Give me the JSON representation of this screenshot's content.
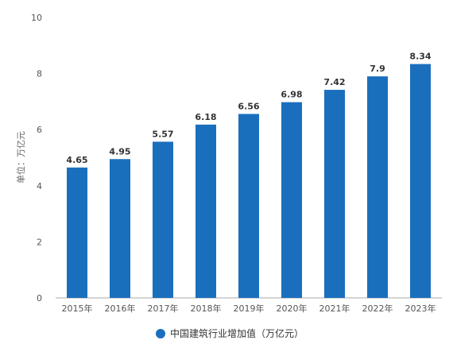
{
  "chart_data": {
    "type": "bar",
    "categories": [
      "2015年",
      "2016年",
      "2017年",
      "2018年",
      "2019年",
      "2020年",
      "2021年",
      "2022年",
      "2023年"
    ],
    "series": [
      {
        "name": "中国建筑行业增加值（万亿元）",
        "values": [
          4.65,
          4.95,
          5.57,
          6.18,
          6.56,
          6.98,
          7.42,
          7.9,
          8.34
        ],
        "value_labels": [
          "4.65",
          "4.95",
          "5.57",
          "6.18",
          "6.56",
          "6.98",
          "7.42",
          "7.9",
          "8.34"
        ]
      }
    ],
    "ylabel": "单位：万亿元",
    "ylim": [
      0,
      10
    ],
    "yticks": [
      "0",
      "2",
      "4",
      "6",
      "8",
      "10"
    ],
    "legend_position": "bottom",
    "grid": false
  },
  "colors": {
    "bar": "#1a6fbd",
    "axis": "#aaaaaa"
  }
}
